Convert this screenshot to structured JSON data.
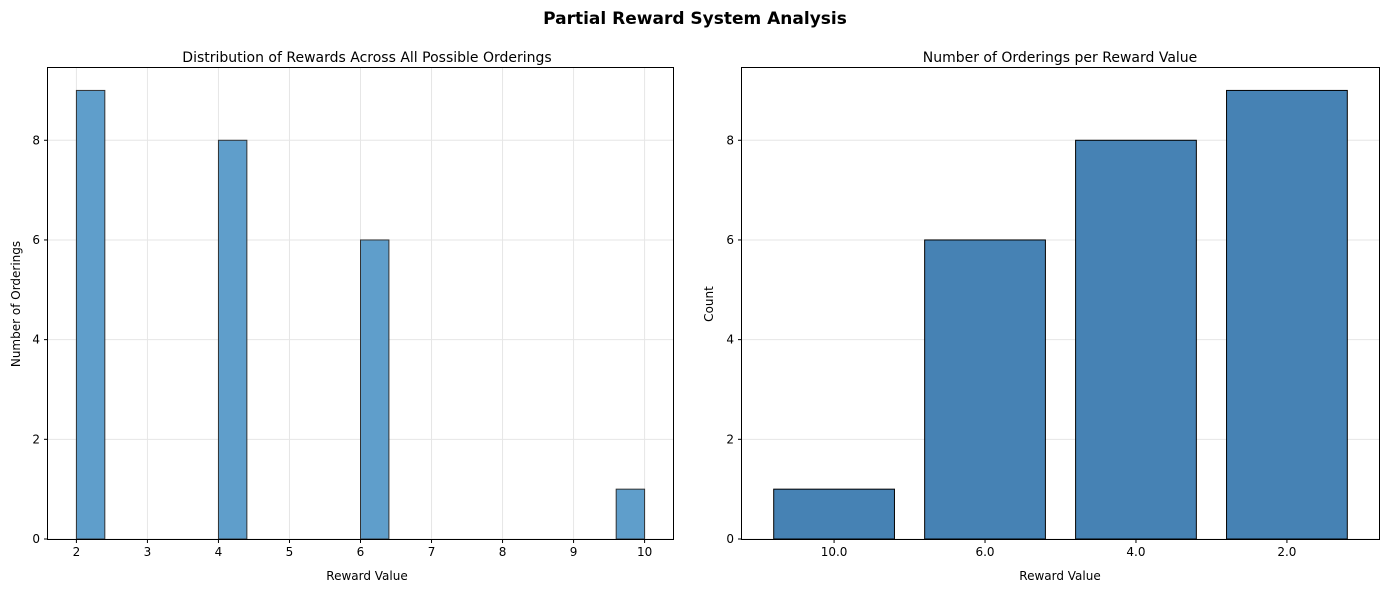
{
  "figure": {
    "suptitle": "Partial Reward System Analysis"
  },
  "chart_data": [
    {
      "type": "bar",
      "title": "Distribution of Rewards Across All Possible Orderings",
      "xlabel": "Reward Value",
      "ylabel": "Number of Orderings",
      "xlim": [
        1.6,
        10.4
      ],
      "ylim": [
        0,
        9.45
      ],
      "xticks": [
        "2",
        "3",
        "4",
        "5",
        "6",
        "7",
        "8",
        "9",
        "10"
      ],
      "yticks": [
        "0",
        "2",
        "4",
        "6",
        "8"
      ],
      "bins": [
        {
          "x0": 2.0,
          "x1": 2.4,
          "count": 9
        },
        {
          "x0": 4.0,
          "x1": 4.4,
          "count": 8
        },
        {
          "x0": 6.0,
          "x1": 6.4,
          "count": 6
        },
        {
          "x0": 9.6,
          "x1": 10.0,
          "count": 1
        }
      ],
      "grid": true,
      "bar_color": "#5f9ecb",
      "edge_color": "#333333"
    },
    {
      "type": "bar",
      "title": "Number of Orderings per Reward Value",
      "xlabel": "Reward Value",
      "ylabel": "Count",
      "categories": [
        "10.0",
        "6.0",
        "4.0",
        "2.0"
      ],
      "values": [
        1,
        6,
        8,
        9
      ],
      "ylim": [
        0,
        9.45
      ],
      "yticks": [
        "0",
        "2",
        "4",
        "6",
        "8"
      ],
      "grid": true,
      "bar_color": "#4682b4",
      "edge_color": "#000000"
    }
  ]
}
